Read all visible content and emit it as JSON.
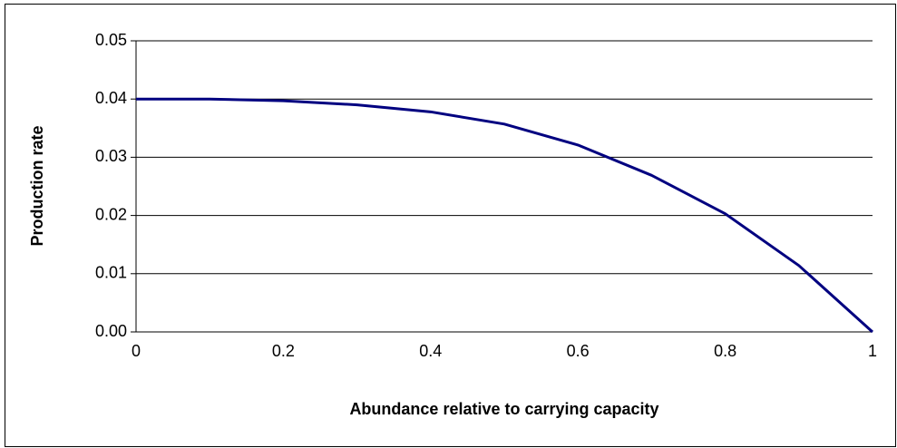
{
  "chart_data": {
    "type": "line",
    "x_label": "Abundance relative to carrying capacity",
    "y_label": "Production rate",
    "x": [
      0,
      0.1,
      0.2,
      0.3,
      0.4,
      0.5,
      0.6,
      0.7,
      0.8,
      0.9,
      1
    ],
    "series": [
      {
        "color": "#000080",
        "values": [
          0.04,
          0.04,
          0.0397,
          0.039,
          0.0378,
          0.0357,
          0.0321,
          0.0269,
          0.0203,
          0.0114,
          0
        ]
      }
    ],
    "xlim": [
      0,
      1
    ],
    "xticks": [
      0,
      0.2,
      0.4,
      0.6,
      0.8,
      1
    ],
    "ylim": [
      0,
      0.05
    ],
    "yticks": [
      {
        "value": 0,
        "label": "0.00"
      },
      0.01,
      0.02,
      0.03,
      0.04,
      0.05
    ],
    "grid": true
  }
}
